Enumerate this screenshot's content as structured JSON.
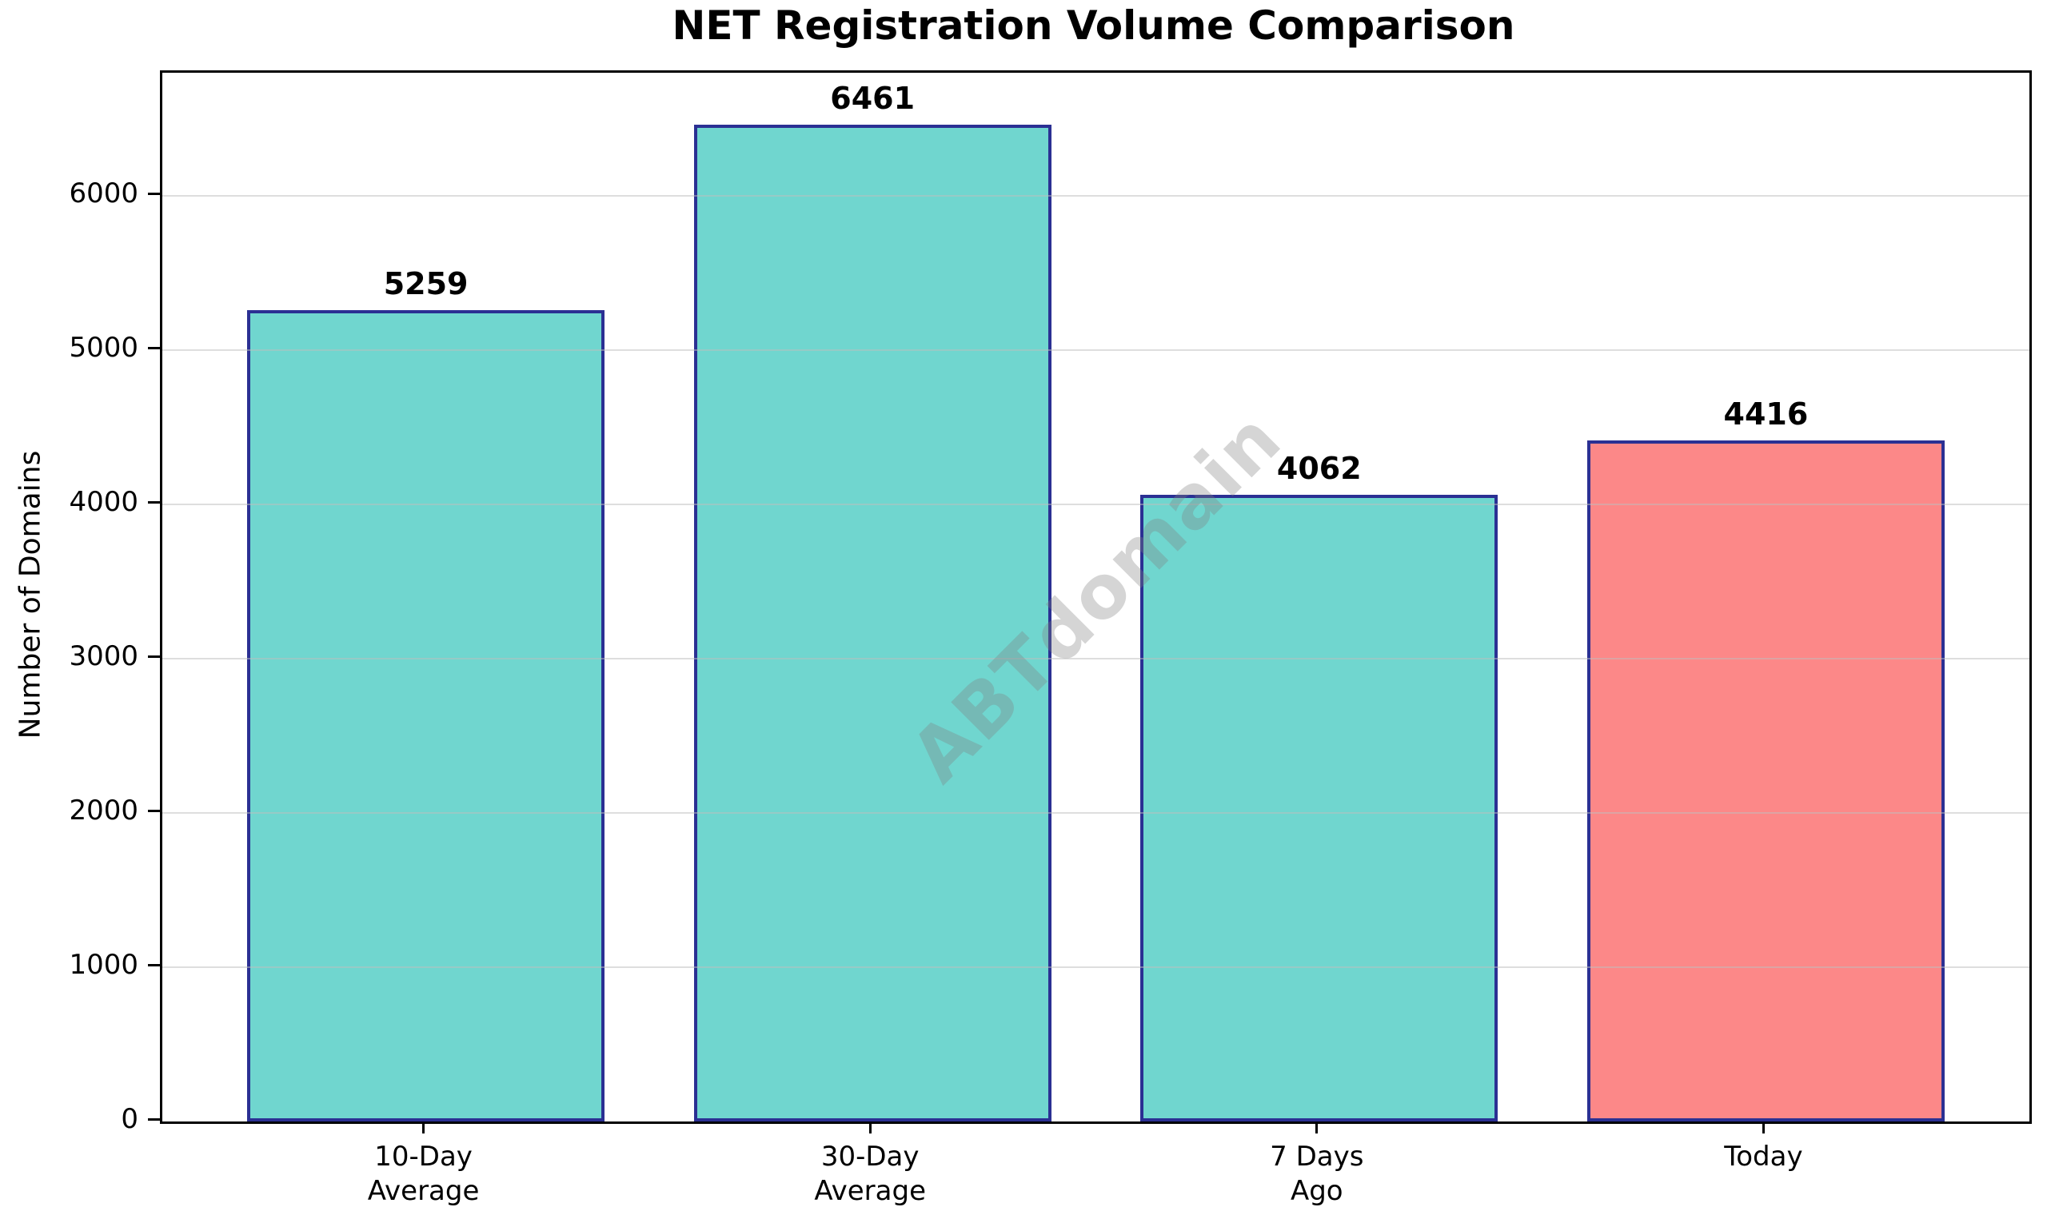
{
  "chart_data": {
    "type": "bar",
    "title": "NET Registration Volume Comparison",
    "xlabel": "",
    "ylabel": "Number of Domains",
    "categories": [
      "10-Day\nAverage",
      "30-Day\nAverage",
      "7 Days\nAgo",
      "Today"
    ],
    "values": [
      5259,
      6461,
      4062,
      4416
    ],
    "value_labels": [
      "5259",
      "6461",
      "4062",
      "4416"
    ],
    "y_ticks": [
      0,
      1000,
      2000,
      3000,
      4000,
      5000,
      6000
    ],
    "y_tick_labels": [
      "0",
      "1000",
      "2000",
      "3000",
      "4000",
      "5000",
      "6000"
    ],
    "ylim": [
      0,
      6800
    ],
    "grid": "horizontal-on-top-of-bars",
    "legend": "none",
    "watermark": "ABTdomain",
    "colors": {
      "bar_fill_default": "#70D6CF",
      "bar_fill_today": "#FC8888",
      "bar_edge": "#2B3093",
      "gridline": "rgba(190,190,190,0.5)",
      "axis": "#000000",
      "watermark_gray": "rgba(127,127,127,0.33)"
    },
    "bar_colors": [
      "#70D6CF",
      "#70D6CF",
      "#70D6CF",
      "#FC8888"
    ]
  }
}
